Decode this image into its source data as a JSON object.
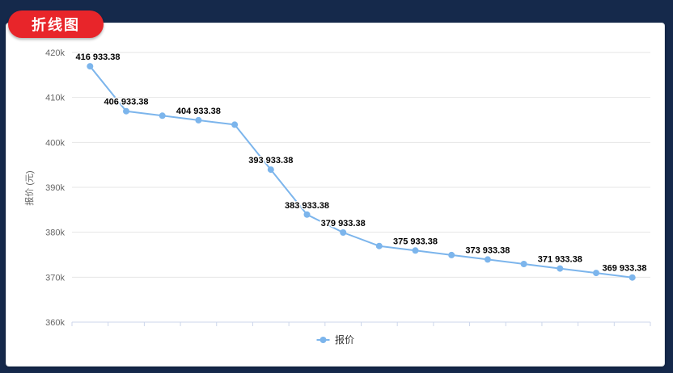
{
  "badge": {
    "label": "折线图"
  },
  "colors": {
    "frame_navy": "#15294B",
    "badge_red": "#E8252A",
    "badge_text": "#FFFFFF",
    "panel_bg": "#FFFFFF",
    "series_blue": "#7CB5EC",
    "grid_line": "#E6E6E6",
    "axis_line": "#CCD6EB",
    "axis_text": "#666666",
    "data_label": "#000000",
    "legend_text": "#333333"
  },
  "chart_data": {
    "type": "line",
    "title": "",
    "xlabel": "",
    "ylabel": "报价 (元)",
    "ylim": [
      360000,
      420000
    ],
    "yticks": [
      {
        "value": 360000,
        "label": "360k"
      },
      {
        "value": 370000,
        "label": "370k"
      },
      {
        "value": 380000,
        "label": "380k"
      },
      {
        "value": 390000,
        "label": "390k"
      },
      {
        "value": 400000,
        "label": "400k"
      },
      {
        "value": 410000,
        "label": "410k"
      },
      {
        "value": 420000,
        "label": "420k"
      }
    ],
    "x_tick_labels": "none",
    "grid": "horizontal",
    "legend": {
      "label": "报价",
      "position": "bottom-center"
    },
    "series": [
      {
        "name": "报价",
        "color": "#7CB5EC",
        "values": [
          416933.38,
          406933.38,
          405933.38,
          404933.38,
          403933.38,
          393933.38,
          383933.38,
          379933.38,
          376933.38,
          375933.38,
          374933.38,
          373933.38,
          372933.38,
          371933.38,
          370933.38,
          369933.38
        ],
        "point_labels": [
          "416 933.38",
          "406 933.38",
          null,
          "404 933.38",
          null,
          "393 933.38",
          "383 933.38",
          "379 933.38",
          null,
          "375 933.38",
          null,
          "373 933.38",
          null,
          "371 933.38",
          null,
          "369 933.38"
        ]
      }
    ]
  }
}
